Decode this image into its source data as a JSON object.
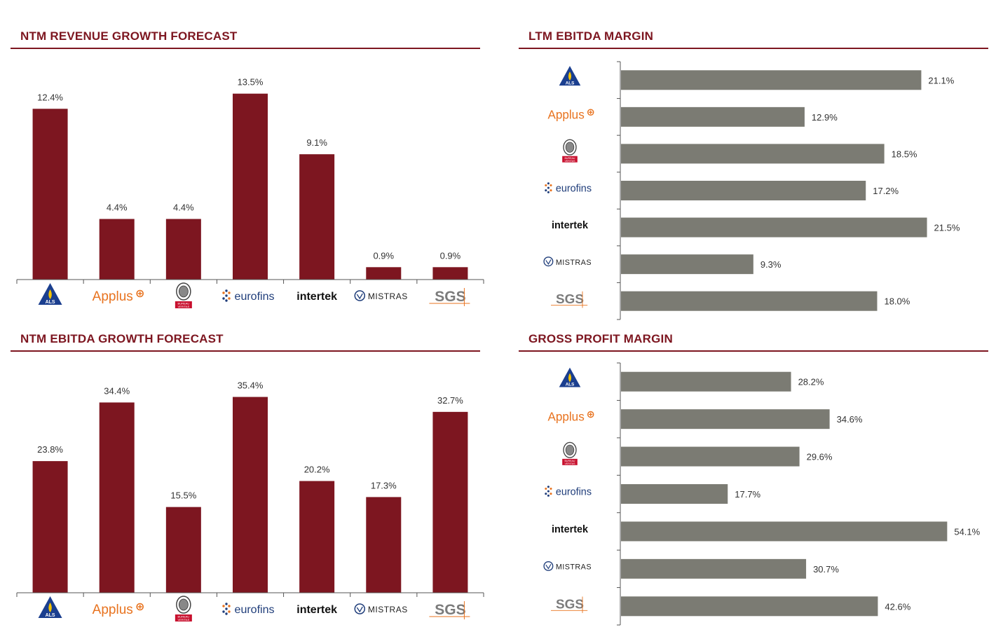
{
  "colors": {
    "title": "#7d1620",
    "bar_vertical": "#7d1620",
    "bar_horizontal": "#7b7b73",
    "axis": "#555555",
    "als_blue": "#1b3f8f",
    "applus_orange": "#e8731f",
    "eurofins_blue": "#1f3d7a",
    "bv_red": "#c8102e"
  },
  "logos": [
    {
      "key": "als",
      "text": "ALS",
      "icon": "als-triangle-logo"
    },
    {
      "key": "applus",
      "text": "Applus",
      "icon": "applus-logo"
    },
    {
      "key": "bv",
      "text": "BUREAU VERITAS",
      "line1": "BUREAU",
      "line2": "VERITAS",
      "icon": "bureau-veritas-seal-logo"
    },
    {
      "key": "eurofins",
      "text": "eurofins",
      "icon": "eurofins-logo"
    },
    {
      "key": "intertek",
      "text": "intertek",
      "icon": "intertek-logo"
    },
    {
      "key": "mistras",
      "text": "MISTRAS",
      "icon": "mistras-logo"
    },
    {
      "key": "sgs",
      "text": "SGS",
      "icon": "sgs-logo"
    }
  ],
  "chart_data": [
    {
      "id": "ntm-revenue",
      "type": "bar",
      "title": "NTM REVENUE GROWTH FORECAST",
      "categories": [
        "ALS",
        "Applus",
        "Bureau Veritas",
        "Eurofins",
        "Intertek",
        "Mistras",
        "SGS"
      ],
      "values": [
        12.4,
        4.4,
        4.4,
        13.5,
        9.1,
        0.9,
        0.9
      ],
      "labels": [
        "12.4%",
        "4.4%",
        "4.4%",
        "13.5%",
        "9.1%",
        "0.9%",
        "0.9%"
      ],
      "ylim": [
        0,
        14.5
      ]
    },
    {
      "id": "ltm-ebitda",
      "type": "bar",
      "orientation": "horizontal",
      "title": "LTM EBITDA MARGIN",
      "categories": [
        "ALS",
        "Applus",
        "Bureau Veritas",
        "Eurofins",
        "Intertek",
        "Mistras",
        "SGS"
      ],
      "values": [
        21.1,
        12.9,
        18.5,
        17.2,
        21.5,
        9.3,
        18.0
      ],
      "labels": [
        "21.1%",
        "12.9%",
        "18.5%",
        "17.2%",
        "21.5%",
        "9.3%",
        "18.0%"
      ],
      "xlim": [
        0,
        23
      ]
    },
    {
      "id": "ntm-ebitda",
      "type": "bar",
      "title": "NTM EBITDA GROWTH FORECAST",
      "categories": [
        "ALS",
        "Applus",
        "Bureau Veritas",
        "Eurofins",
        "Intertek",
        "Mistras",
        "SGS"
      ],
      "values": [
        23.8,
        34.4,
        15.5,
        35.4,
        20.2,
        17.3,
        32.7
      ],
      "labels": [
        "23.8%",
        "34.4%",
        "15.5%",
        "35.4%",
        "20.2%",
        "17.3%",
        "32.7%"
      ],
      "ylim": [
        0,
        38
      ]
    },
    {
      "id": "gross-profit",
      "type": "bar",
      "orientation": "horizontal",
      "title": "GROSS PROFIT MARGIN",
      "categories": [
        "ALS",
        "Applus",
        "Bureau Veritas",
        "Eurofins",
        "Intertek",
        "Mistras",
        "SGS"
      ],
      "values": [
        28.2,
        34.6,
        29.6,
        17.7,
        54.1,
        30.7,
        42.6
      ],
      "labels": [
        "28.2%",
        "34.6%",
        "29.6%",
        "17.7%",
        "54.1%",
        "30.7%",
        "42.6%"
      ],
      "xlim": [
        0,
        56.5
      ]
    }
  ]
}
